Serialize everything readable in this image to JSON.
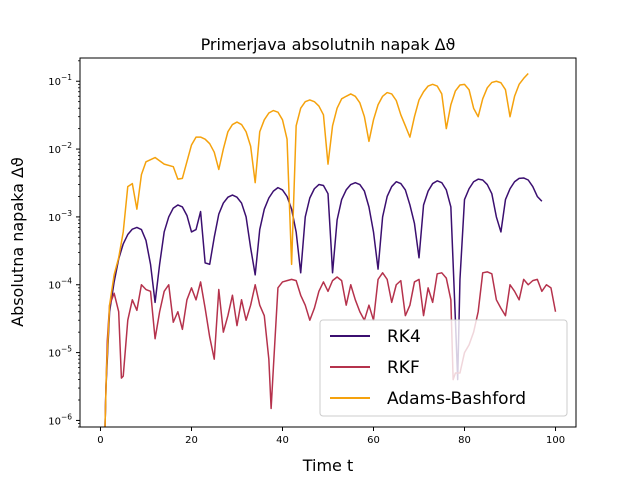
{
  "chart_data": {
    "type": "line",
    "title": "Primerjava absolutnih napak Δϑ",
    "xlabel": "Time t",
    "ylabel": "Absolutna napaka Δϑ",
    "xlim": [
      -4.5,
      104.5
    ],
    "ylim": [
      8e-07,
      0.22
    ],
    "yscale": "log",
    "xticks": [
      0,
      20,
      40,
      60,
      80,
      100
    ],
    "xtick_labels": [
      "0",
      "20",
      "40",
      "60",
      "80",
      "100"
    ],
    "yticks": [
      1e-06,
      1e-05,
      0.0001,
      0.001,
      0.01,
      0.1
    ],
    "ytick_labels": [
      {
        "base": "10",
        "exp": "−6"
      },
      {
        "base": "10",
        "exp": "−5"
      },
      {
        "base": "10",
        "exp": "−4"
      },
      {
        "base": "10",
        "exp": "−3"
      },
      {
        "base": "10",
        "exp": "−2"
      },
      {
        "base": "10",
        "exp": "−1"
      }
    ],
    "grid": false,
    "legend_position": "lower-right",
    "series": [
      {
        "name": "RK4",
        "color": "#3b0f70",
        "points": [
          [
            1,
            8e-07
          ],
          [
            1.2,
            3e-06
          ],
          [
            2,
            4e-05
          ],
          [
            3,
            0.00011
          ],
          [
            4,
            0.00024
          ],
          [
            5,
            0.0004
          ],
          [
            6,
            0.00055
          ],
          [
            7,
            0.00066
          ],
          [
            8,
            0.0007
          ],
          [
            9,
            0.00065
          ],
          [
            10,
            0.00045
          ],
          [
            11,
            0.0002
          ],
          [
            12,
            5.5e-05
          ],
          [
            13,
            0.0002
          ],
          [
            14,
            0.0006
          ],
          [
            15,
            0.001
          ],
          [
            16,
            0.00135
          ],
          [
            17,
            0.0015
          ],
          [
            18,
            0.0014
          ],
          [
            19,
            0.00105
          ],
          [
            20,
            0.0006
          ],
          [
            21,
            0.00065
          ],
          [
            22,
            0.0012
          ],
          [
            23,
            0.00021
          ],
          [
            24,
            0.0002
          ],
          [
            25,
            0.0005
          ],
          [
            26,
            0.0011
          ],
          [
            27,
            0.0016
          ],
          [
            28,
            0.00195
          ],
          [
            29,
            0.0021
          ],
          [
            30,
            0.00195
          ],
          [
            31,
            0.0016
          ],
          [
            32,
            0.001
          ],
          [
            33,
            0.00035
          ],
          [
            34,
            0.00014
          ],
          [
            35,
            0.00065
          ],
          [
            36,
            0.0013
          ],
          [
            37,
            0.0019
          ],
          [
            38,
            0.0024
          ],
          [
            39,
            0.0027
          ],
          [
            40,
            0.0025
          ],
          [
            41,
            0.002
          ],
          [
            42,
            0.0013
          ],
          [
            43,
            0.0006
          ],
          [
            44,
            0.00015
          ],
          [
            45,
            0.001
          ],
          [
            46,
            0.0019
          ],
          [
            47,
            0.0026
          ],
          [
            48,
            0.003
          ],
          [
            49,
            0.0029
          ],
          [
            50,
            0.0022
          ],
          [
            50.7,
            0.00035
          ],
          [
            51,
            0.00015
          ],
          [
            52,
            0.0009
          ],
          [
            53,
            0.0018
          ],
          [
            54,
            0.0025
          ],
          [
            55,
            0.003
          ],
          [
            56,
            0.0032
          ],
          [
            57,
            0.003
          ],
          [
            58,
            0.0024
          ],
          [
            59,
            0.0014
          ],
          [
            60,
            0.0006
          ],
          [
            61,
            0.00017
          ],
          [
            62,
            0.001
          ],
          [
            63,
            0.002
          ],
          [
            64,
            0.0028
          ],
          [
            65,
            0.0033
          ],
          [
            66,
            0.0031
          ],
          [
            67,
            0.0025
          ],
          [
            68,
            0.0015
          ],
          [
            69,
            0.0008
          ],
          [
            70,
            0.00025
          ],
          [
            71,
            0.0015
          ],
          [
            72,
            0.0024
          ],
          [
            73,
            0.0031
          ],
          [
            74,
            0.0034
          ],
          [
            75,
            0.0032
          ],
          [
            76,
            0.0025
          ],
          [
            77,
            0.0014
          ],
          [
            78,
            3e-05
          ],
          [
            78.5,
            4e-06
          ],
          [
            79,
            0.00012
          ],
          [
            80,
            0.0018
          ],
          [
            81,
            0.0026
          ],
          [
            82,
            0.0033
          ],
          [
            83,
            0.0036
          ],
          [
            84,
            0.0035
          ],
          [
            85,
            0.003
          ],
          [
            86,
            0.0022
          ],
          [
            87,
            0.001
          ],
          [
            88,
            0.0006
          ],
          [
            89,
            0.0018
          ],
          [
            90,
            0.0026
          ],
          [
            91,
            0.0033
          ],
          [
            92,
            0.0037
          ],
          [
            93,
            0.00375
          ],
          [
            94,
            0.0035
          ],
          [
            95,
            0.0028
          ],
          [
            96,
            0.002
          ],
          [
            97,
            0.0017
          ]
        ]
      },
      {
        "name": "RKF",
        "color": "#b5324c",
        "points": [
          [
            1,
            8e-07
          ],
          [
            1.2,
            3e-06
          ],
          [
            1.5,
            1.5e-05
          ],
          [
            2,
            5e-05
          ],
          [
            3,
            7.5e-05
          ],
          [
            4,
            4e-05
          ],
          [
            4.6,
            4.2e-06
          ],
          [
            5,
            4.5e-06
          ],
          [
            6,
            3e-05
          ],
          [
            7,
            6e-05
          ],
          [
            8,
            4.2e-05
          ],
          [
            9,
            0.0001
          ],
          [
            10,
            8.5e-05
          ],
          [
            11,
            8e-05
          ],
          [
            12,
            1.6e-05
          ],
          [
            13,
            4e-05
          ],
          [
            14,
            8e-05
          ],
          [
            15,
            0.0001
          ],
          [
            16,
            2.8e-05
          ],
          [
            17,
            4e-05
          ],
          [
            18,
            2.2e-05
          ],
          [
            19,
            6e-05
          ],
          [
            20,
            9e-05
          ],
          [
            21,
            6e-05
          ],
          [
            22,
            0.00011
          ],
          [
            23,
            4.5e-05
          ],
          [
            24,
            1.7e-05
          ],
          [
            25,
            8e-06
          ],
          [
            26,
            8.5e-05
          ],
          [
            27,
            2e-05
          ],
          [
            28,
            3.5e-05
          ],
          [
            29,
            7e-05
          ],
          [
            30,
            2.5e-05
          ],
          [
            31,
            6e-05
          ],
          [
            32,
            3e-05
          ],
          [
            33,
            5e-05
          ],
          [
            34,
            0.0001
          ],
          [
            35,
            5e-05
          ],
          [
            36,
            3.5e-05
          ],
          [
            37,
            8e-06
          ],
          [
            37.5,
            1.5e-06
          ],
          [
            38,
            6e-06
          ],
          [
            39,
            9e-05
          ],
          [
            40,
            0.00011
          ],
          [
            41,
            0.000115
          ],
          [
            42,
            0.00012
          ],
          [
            43,
            0.000115
          ],
          [
            44,
            7e-05
          ],
          [
            45,
            5e-05
          ],
          [
            46,
            3e-05
          ],
          [
            47,
            4.5e-05
          ],
          [
            48,
            8e-05
          ],
          [
            49,
            0.00011
          ],
          [
            50,
            8e-05
          ],
          [
            51,
            0.000115
          ],
          [
            52,
            0.00013
          ],
          [
            53,
            0.000115
          ],
          [
            54,
            5e-05
          ],
          [
            55,
            0.0001
          ],
          [
            56,
            6e-05
          ],
          [
            57,
            4e-05
          ],
          [
            58,
            3e-05
          ],
          [
            59,
            5e-05
          ],
          [
            60,
            3e-05
          ],
          [
            61,
            0.00012
          ],
          [
            62,
            0.00015
          ],
          [
            63,
            0.00012
          ],
          [
            64,
            5.5e-05
          ],
          [
            65,
            0.0001
          ],
          [
            66,
            0.000115
          ],
          [
            67,
            3.5e-05
          ],
          [
            68,
            5e-05
          ],
          [
            69,
            0.00011
          ],
          [
            70,
            0.00012
          ],
          [
            71,
            3.5e-05
          ],
          [
            72,
            9e-05
          ],
          [
            73,
            5.5e-05
          ],
          [
            74,
            0.000145
          ],
          [
            75,
            0.00015
          ],
          [
            76,
            0.000125
          ],
          [
            77,
            6e-05
          ],
          [
            77.5,
            4e-06
          ],
          [
            78,
            5e-06
          ],
          [
            79,
            5e-06
          ],
          [
            80,
            1e-05
          ],
          [
            81,
            1.3e-05
          ],
          [
            82,
            2e-05
          ],
          [
            83,
            4e-05
          ],
          [
            84,
            0.00015
          ],
          [
            85,
            0.000155
          ],
          [
            86,
            0.000145
          ],
          [
            87,
            6e-05
          ],
          [
            88,
            4.5e-05
          ],
          [
            89,
            3.5e-05
          ],
          [
            90,
            0.0001
          ],
          [
            91,
            8e-05
          ],
          [
            92,
            6e-05
          ],
          [
            93,
            0.00012
          ],
          [
            94,
            0.0001
          ],
          [
            95,
            0.000115
          ],
          [
            96,
            0.00012
          ],
          [
            97,
            8e-05
          ],
          [
            98,
            0.0001
          ],
          [
            99,
            9e-05
          ],
          [
            100,
            4e-05
          ]
        ]
      },
      {
        "name": "Adams-Bashford",
        "color": "#f5a20d",
        "points": [
          [
            1,
            8e-07
          ],
          [
            1.3,
            5e-06
          ],
          [
            2,
            5e-05
          ],
          [
            3,
            0.00014
          ],
          [
            4,
            0.00025
          ],
          [
            5,
            0.0006
          ],
          [
            6,
            0.0028
          ],
          [
            7,
            0.0031
          ],
          [
            8,
            0.0013
          ],
          [
            9,
            0.0042
          ],
          [
            10,
            0.0065
          ],
          [
            12,
            0.0075
          ],
          [
            14,
            0.006
          ],
          [
            16,
            0.0055
          ],
          [
            17,
            0.0036
          ],
          [
            18,
            0.0037
          ],
          [
            20,
            0.0115
          ],
          [
            21,
            0.015
          ],
          [
            22,
            0.015
          ],
          [
            23,
            0.014
          ],
          [
            24,
            0.012
          ],
          [
            25,
            0.009
          ],
          [
            26,
            0.005
          ],
          [
            27,
            0.01
          ],
          [
            28,
            0.018
          ],
          [
            29,
            0.023
          ],
          [
            30,
            0.025
          ],
          [
            31,
            0.023
          ],
          [
            32,
            0.018
          ],
          [
            33,
            0.011
          ],
          [
            34,
            0.0032
          ],
          [
            35,
            0.018
          ],
          [
            36,
            0.027
          ],
          [
            37,
            0.034
          ],
          [
            38,
            0.037
          ],
          [
            39,
            0.035
          ],
          [
            40,
            0.027
          ],
          [
            41,
            0.014
          ],
          [
            42,
            0.0002
          ],
          [
            43,
            0.022
          ],
          [
            44,
            0.04
          ],
          [
            45,
            0.05
          ],
          [
            46,
            0.053
          ],
          [
            47,
            0.05
          ],
          [
            48,
            0.043
          ],
          [
            49,
            0.032
          ],
          [
            50,
            0.006
          ],
          [
            51,
            0.022
          ],
          [
            52,
            0.04
          ],
          [
            53,
            0.055
          ],
          [
            54,
            0.06
          ],
          [
            55,
            0.065
          ],
          [
            56,
            0.06
          ],
          [
            57,
            0.048
          ],
          [
            58,
            0.03
          ],
          [
            59,
            0.013
          ],
          [
            60,
            0.027
          ],
          [
            61,
            0.045
          ],
          [
            62,
            0.06
          ],
          [
            63,
            0.068
          ],
          [
            64,
            0.065
          ],
          [
            65,
            0.052
          ],
          [
            66,
            0.032
          ],
          [
            67,
            0.022
          ],
          [
            68,
            0.015
          ],
          [
            69,
            0.03
          ],
          [
            70,
            0.053
          ],
          [
            71,
            0.07
          ],
          [
            72,
            0.085
          ],
          [
            73,
            0.09
          ],
          [
            74,
            0.085
          ],
          [
            75,
            0.065
          ],
          [
            76,
            0.02
          ],
          [
            77,
            0.045
          ],
          [
            78,
            0.072
          ],
          [
            79,
            0.088
          ],
          [
            80,
            0.09
          ],
          [
            81,
            0.075
          ],
          [
            82,
            0.04
          ],
          [
            83,
            0.03
          ],
          [
            84,
            0.055
          ],
          [
            85,
            0.08
          ],
          [
            86,
            0.096
          ],
          [
            87,
            0.1
          ],
          [
            88,
            0.095
          ],
          [
            89,
            0.075
          ],
          [
            90,
            0.03
          ],
          [
            91,
            0.06
          ],
          [
            92,
            0.09
          ],
          [
            93,
            0.11
          ],
          [
            94,
            0.13
          ]
        ]
      }
    ]
  }
}
